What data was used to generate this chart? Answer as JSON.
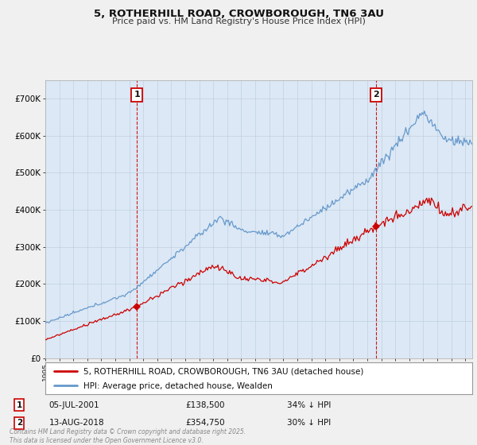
{
  "title": "5, ROTHERHILL ROAD, CROWBOROUGH, TN6 3AU",
  "subtitle": "Price paid vs. HM Land Registry's House Price Index (HPI)",
  "red_label": "5, ROTHERHILL ROAD, CROWBOROUGH, TN6 3AU (detached house)",
  "blue_label": "HPI: Average price, detached house, Wealden",
  "transaction1": {
    "num": "1",
    "date": "05-JUL-2001",
    "price": "£138,500",
    "hpi": "34% ↓ HPI",
    "year": 2001.54
  },
  "transaction2": {
    "num": "2",
    "date": "13-AUG-2018",
    "price": "£354,750",
    "hpi": "30% ↓ HPI",
    "year": 2018.62
  },
  "footnote": "Contains HM Land Registry data © Crown copyright and database right 2025.\nThis data is licensed under the Open Government Licence v3.0.",
  "ylim": [
    0,
    750000
  ],
  "xlim_start": 1995.0,
  "xlim_end": 2025.5,
  "background_color": "#f0f0f0",
  "plot_bg_color": "#dce8f5",
  "grid_color": "#c0d0e0",
  "red_color": "#cc0000",
  "blue_color": "#6699cc",
  "title_color": "#111111",
  "subtitle_color": "#333333"
}
